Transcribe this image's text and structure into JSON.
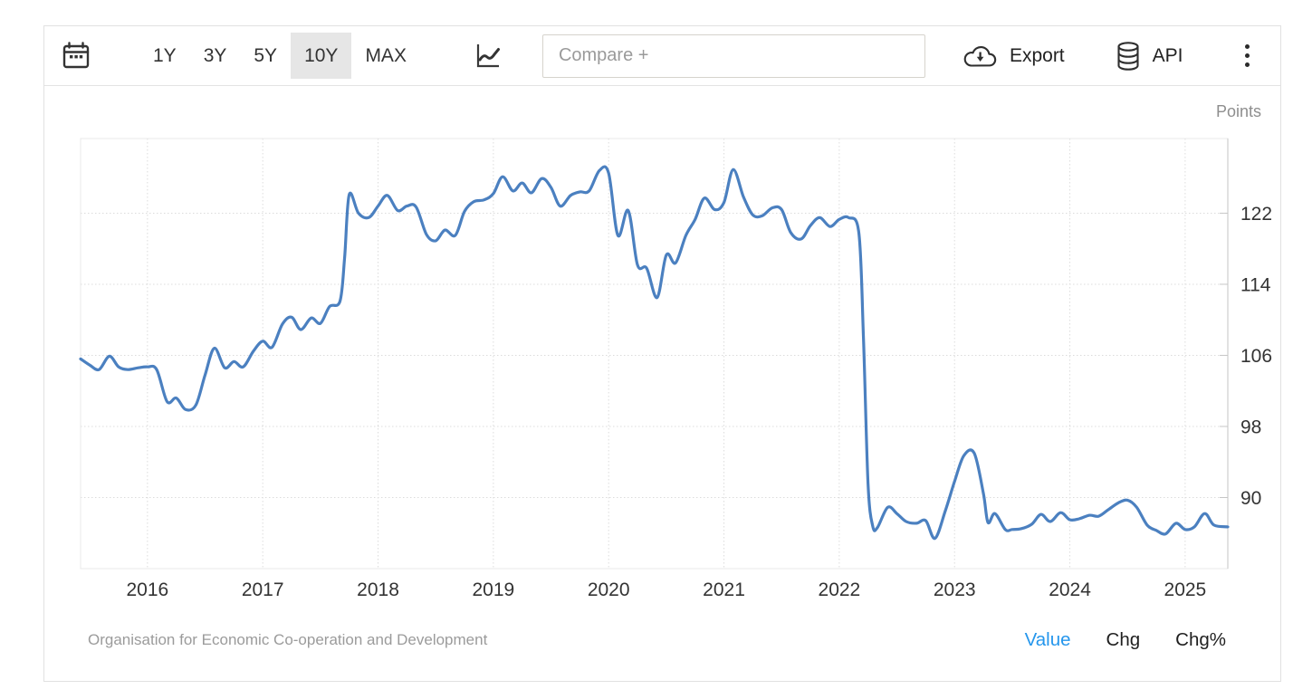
{
  "toolbar": {
    "calendar_icon": "calendar-icon",
    "ranges": [
      {
        "label": "1Y",
        "selected": false
      },
      {
        "label": "3Y",
        "selected": false
      },
      {
        "label": "5Y",
        "selected": false
      },
      {
        "label": "10Y",
        "selected": true
      },
      {
        "label": "MAX",
        "selected": false
      }
    ],
    "chart_type_icon": "line-chart-icon",
    "compare_placeholder": "Compare +",
    "export_label": "Export",
    "export_icon": "cloud-download-icon",
    "api_label": "API",
    "api_icon": "database-icon",
    "more_icon": "kebab-menu-icon"
  },
  "footer": {
    "source": "Organisation for Economic Co-operation and Development",
    "modes": [
      {
        "label": "Value",
        "active": true
      },
      {
        "label": "Chg",
        "active": false
      },
      {
        "label": "Chg%",
        "active": false
      }
    ]
  },
  "colors": {
    "line": "#4b80c0",
    "grid": "#dcdcdc",
    "plot_border": "#e8e8e8",
    "axis": "#c6c6c6",
    "axis_label": "#333333",
    "unit_label": "#8e8e8e",
    "active_mode": "#2596ec",
    "selected_range_bg": "#e6e6e6"
  },
  "chart_data": {
    "type": "line",
    "title": "",
    "unit": "Points",
    "xlabel": "",
    "ylabel": "Points",
    "x_range": [
      2015.42,
      2025.37
    ],
    "y_range": [
      82.0,
      130.4
    ],
    "x_ticks": [
      2016,
      2017,
      2018,
      2019,
      2020,
      2021,
      2022,
      2023,
      2024,
      2025
    ],
    "y_ticks": [
      122,
      114,
      106,
      98,
      90
    ],
    "grid": "dotted",
    "legend": "none",
    "series": [
      {
        "name": "Value",
        "color": "#4b80c0",
        "points": [
          [
            2015.42,
            105.6
          ],
          [
            2015.5,
            104.9
          ],
          [
            2015.58,
            104.4
          ],
          [
            2015.67,
            105.9
          ],
          [
            2015.75,
            104.7
          ],
          [
            2015.83,
            104.4
          ],
          [
            2015.92,
            104.6
          ],
          [
            2016.0,
            104.7
          ],
          [
            2016.08,
            104.4
          ],
          [
            2016.17,
            100.8
          ],
          [
            2016.25,
            101.2
          ],
          [
            2016.33,
            99.9
          ],
          [
            2016.42,
            100.4
          ],
          [
            2016.5,
            103.8
          ],
          [
            2016.58,
            106.8
          ],
          [
            2016.67,
            104.6
          ],
          [
            2016.75,
            105.3
          ],
          [
            2016.83,
            104.7
          ],
          [
            2016.92,
            106.5
          ],
          [
            2017.0,
            107.6
          ],
          [
            2017.08,
            106.9
          ],
          [
            2017.17,
            109.5
          ],
          [
            2017.25,
            110.3
          ],
          [
            2017.33,
            108.9
          ],
          [
            2017.42,
            110.2
          ],
          [
            2017.5,
            109.6
          ],
          [
            2017.58,
            111.5
          ],
          [
            2017.67,
            112.1
          ],
          [
            2017.71,
            117.0
          ],
          [
            2017.75,
            124.1
          ],
          [
            2017.83,
            122.0
          ],
          [
            2017.92,
            121.5
          ],
          [
            2018.0,
            122.8
          ],
          [
            2018.08,
            124.0
          ],
          [
            2018.17,
            122.3
          ],
          [
            2018.25,
            122.8
          ],
          [
            2018.33,
            122.7
          ],
          [
            2018.42,
            119.6
          ],
          [
            2018.5,
            118.9
          ],
          [
            2018.58,
            120.1
          ],
          [
            2018.67,
            119.5
          ],
          [
            2018.75,
            122.2
          ],
          [
            2018.83,
            123.3
          ],
          [
            2018.92,
            123.5
          ],
          [
            2019.0,
            124.2
          ],
          [
            2019.08,
            126.1
          ],
          [
            2019.17,
            124.5
          ],
          [
            2019.25,
            125.4
          ],
          [
            2019.33,
            124.3
          ],
          [
            2019.42,
            125.9
          ],
          [
            2019.5,
            124.9
          ],
          [
            2019.58,
            122.8
          ],
          [
            2019.67,
            124.0
          ],
          [
            2019.75,
            124.4
          ],
          [
            2019.83,
            124.5
          ],
          [
            2019.92,
            126.8
          ],
          [
            2020.0,
            126.5
          ],
          [
            2020.08,
            119.5
          ],
          [
            2020.17,
            122.3
          ],
          [
            2020.25,
            116.2
          ],
          [
            2020.33,
            115.8
          ],
          [
            2020.42,
            112.5
          ],
          [
            2020.5,
            117.3
          ],
          [
            2020.58,
            116.4
          ],
          [
            2020.67,
            119.5
          ],
          [
            2020.75,
            121.3
          ],
          [
            2020.83,
            123.7
          ],
          [
            2020.92,
            122.4
          ],
          [
            2021.0,
            123.2
          ],
          [
            2021.08,
            126.9
          ],
          [
            2021.17,
            123.8
          ],
          [
            2021.25,
            121.8
          ],
          [
            2021.33,
            121.7
          ],
          [
            2021.42,
            122.6
          ],
          [
            2021.5,
            122.4
          ],
          [
            2021.58,
            119.8
          ],
          [
            2021.67,
            119.1
          ],
          [
            2021.75,
            120.6
          ],
          [
            2021.83,
            121.5
          ],
          [
            2021.92,
            120.5
          ],
          [
            2022.0,
            121.3
          ],
          [
            2022.08,
            121.5
          ],
          [
            2022.17,
            119.8
          ],
          [
            2022.21,
            108.0
          ],
          [
            2022.25,
            91.5
          ],
          [
            2022.29,
            86.8
          ],
          [
            2022.33,
            86.6
          ],
          [
            2022.42,
            88.9
          ],
          [
            2022.5,
            88.2
          ],
          [
            2022.58,
            87.3
          ],
          [
            2022.67,
            87.1
          ],
          [
            2022.75,
            87.4
          ],
          [
            2022.83,
            85.4
          ],
          [
            2022.92,
            88.5
          ],
          [
            2023.0,
            91.8
          ],
          [
            2023.08,
            94.7
          ],
          [
            2023.17,
            95.0
          ],
          [
            2023.25,
            90.5
          ],
          [
            2023.29,
            87.2
          ],
          [
            2023.35,
            88.2
          ],
          [
            2023.44,
            86.4
          ],
          [
            2023.5,
            86.4
          ],
          [
            2023.58,
            86.5
          ],
          [
            2023.67,
            87.0
          ],
          [
            2023.75,
            88.1
          ],
          [
            2023.83,
            87.3
          ],
          [
            2023.92,
            88.3
          ],
          [
            2024.0,
            87.5
          ],
          [
            2024.08,
            87.6
          ],
          [
            2024.17,
            88.0
          ],
          [
            2024.25,
            87.9
          ],
          [
            2024.33,
            88.6
          ],
          [
            2024.42,
            89.4
          ],
          [
            2024.5,
            89.7
          ],
          [
            2024.58,
            88.9
          ],
          [
            2024.67,
            86.9
          ],
          [
            2024.75,
            86.3
          ],
          [
            2024.83,
            85.9
          ],
          [
            2024.92,
            87.1
          ],
          [
            2025.0,
            86.4
          ],
          [
            2025.08,
            86.7
          ],
          [
            2025.17,
            88.2
          ],
          [
            2025.25,
            86.9
          ],
          [
            2025.37,
            86.7
          ]
        ]
      }
    ]
  }
}
